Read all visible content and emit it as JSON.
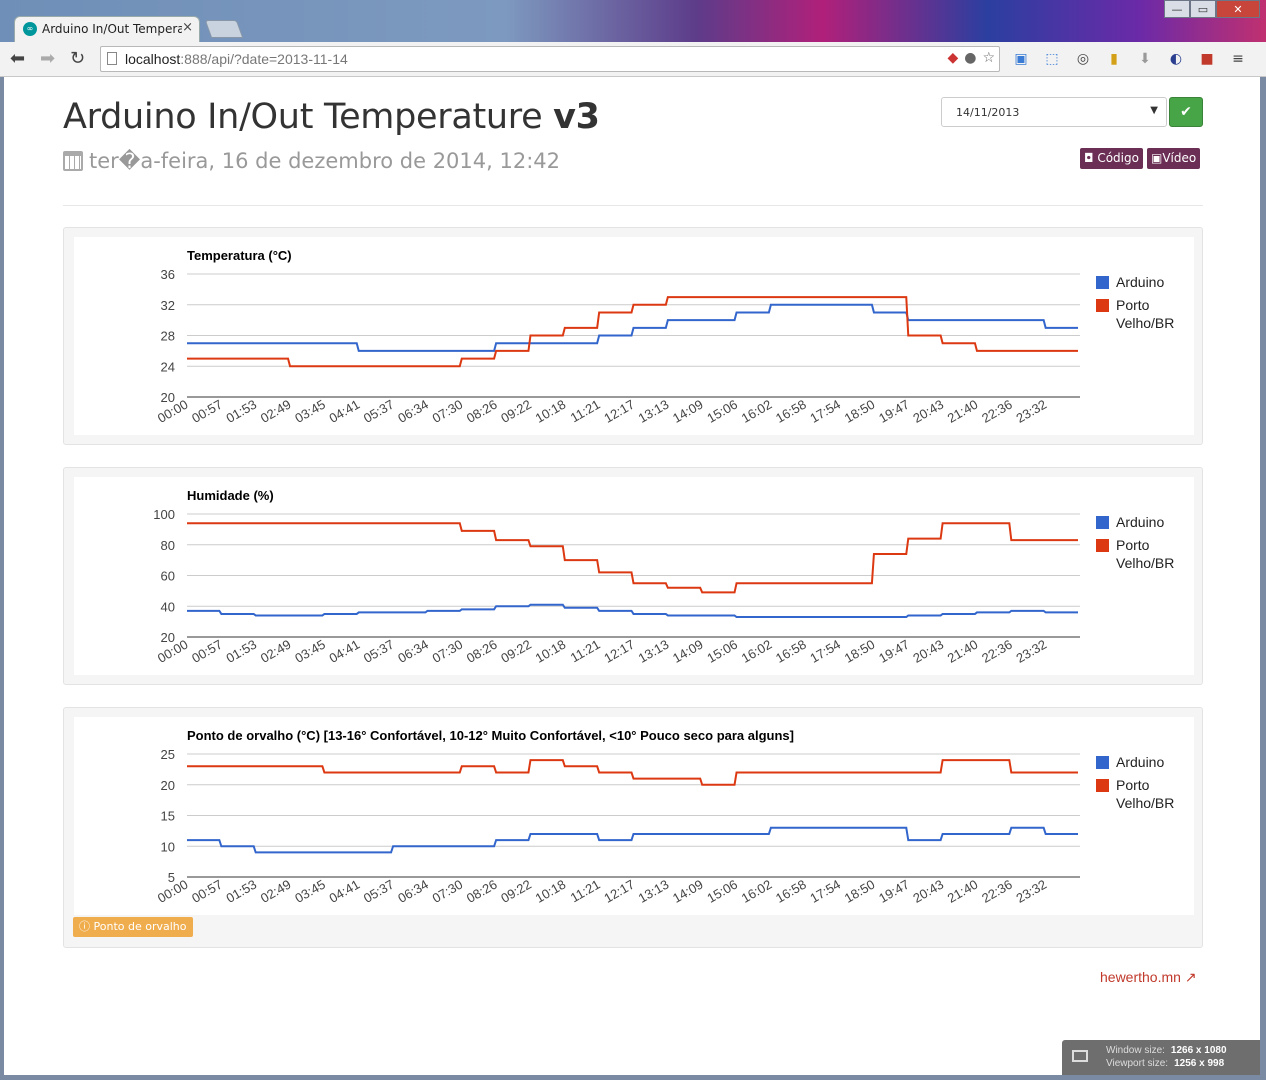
{
  "browser": {
    "tab_title": "Arduino In/Out Temperatu",
    "tab_close": "×",
    "url_host": "localhost",
    "url_rest": ":888/api/?date=2013-11-14",
    "window_controls": [
      "—",
      "▭",
      "✕"
    ]
  },
  "page": {
    "title_main": "Arduino In/Out Temperature ",
    "title_version": "v3",
    "subtitle": "ter�a-feira, 16 de dezembro de 2014, 12:42",
    "date_value": "14/11/2013",
    "code_button": "Código",
    "video_button": "Vídeo",
    "note_button": "Ponto de orvalho",
    "footer_link": "hewertho.mn"
  },
  "size_overlay": {
    "window_label": "Window size:",
    "window_value": "1266 x 1080",
    "viewport_label": "Viewport size:",
    "viewport_value": "1256 x 998"
  },
  "colors": {
    "arduino": "#3366cc",
    "porto": "#dc3912"
  },
  "chart_data": [
    {
      "type": "line",
      "title": "Temperatura (°C)",
      "x": [
        "00:00",
        "00:57",
        "01:53",
        "02:49",
        "03:45",
        "04:41",
        "05:37",
        "06:34",
        "07:30",
        "08:26",
        "09:22",
        "10:18",
        "11:21",
        "12:17",
        "13:13",
        "14:09",
        "15:06",
        "16:02",
        "16:58",
        "17:54",
        "18:50",
        "19:47",
        "20:43",
        "21:40",
        "22:36",
        "23:32"
      ],
      "yticks": [
        20,
        24,
        28,
        32,
        36
      ],
      "ylim": [
        20,
        36
      ],
      "series": [
        {
          "name": "Arduino",
          "values": [
            27,
            27,
            27,
            27,
            27,
            26,
            26,
            26,
            26,
            27,
            27,
            27,
            28,
            29,
            30,
            30,
            31,
            32,
            32,
            32,
            31,
            30,
            30,
            30,
            30,
            29
          ]
        },
        {
          "name": "Porto Velho/BR",
          "values": [
            25,
            25,
            25,
            24,
            24,
            24,
            24,
            24,
            25,
            26,
            28,
            29,
            31,
            32,
            33,
            33,
            33,
            33,
            33,
            33,
            33,
            28,
            27,
            26,
            26,
            26
          ]
        }
      ]
    },
    {
      "type": "line",
      "title": "Humidade (%)",
      "x": [
        "00:00",
        "00:57",
        "01:53",
        "02:49",
        "03:45",
        "04:41",
        "05:37",
        "06:34",
        "07:30",
        "08:26",
        "09:22",
        "10:18",
        "11:21",
        "12:17",
        "13:13",
        "14:09",
        "15:06",
        "16:02",
        "16:58",
        "17:54",
        "18:50",
        "19:47",
        "20:43",
        "21:40",
        "22:36",
        "23:32"
      ],
      "yticks": [
        20,
        40,
        60,
        80,
        100
      ],
      "ylim": [
        20,
        100
      ],
      "series": [
        {
          "name": "Arduino",
          "values": [
            37,
            35,
            34,
            34,
            35,
            36,
            36,
            37,
            38,
            40,
            41,
            39,
            37,
            35,
            34,
            34,
            33,
            33,
            33,
            33,
            33,
            34,
            35,
            36,
            37,
            36
          ]
        },
        {
          "name": "Porto Velho/BR",
          "values": [
            94,
            94,
            94,
            94,
            94,
            94,
            94,
            94,
            89,
            83,
            79,
            70,
            62,
            55,
            52,
            49,
            55,
            55,
            55,
            55,
            74,
            84,
            94,
            94,
            83,
            83
          ]
        }
      ]
    },
    {
      "type": "line",
      "title": "Ponto de orvalho (°C) [13-16° Confortável, 10-12° Muito Confortável, <10° Pouco seco para alguns]",
      "x": [
        "00:00",
        "00:57",
        "01:53",
        "02:49",
        "03:45",
        "04:41",
        "05:37",
        "06:34",
        "07:30",
        "08:26",
        "09:22",
        "10:18",
        "11:21",
        "12:17",
        "13:13",
        "14:09",
        "15:06",
        "16:02",
        "16:58",
        "17:54",
        "18:50",
        "19:47",
        "20:43",
        "21:40",
        "22:36",
        "23:32"
      ],
      "yticks": [
        5,
        10,
        15,
        20,
        25
      ],
      "ylim": [
        5,
        25
      ],
      "series": [
        {
          "name": "Arduino",
          "values": [
            11,
            10,
            9,
            9,
            9,
            9,
            10,
            10,
            10,
            11,
            12,
            12,
            11,
            12,
            12,
            12,
            12,
            13,
            13,
            13,
            13,
            11,
            12,
            12,
            13,
            12
          ]
        },
        {
          "name": "Porto Velho/BR",
          "values": [
            23,
            23,
            23,
            23,
            22,
            22,
            22,
            22,
            23,
            22,
            24,
            23,
            22,
            21,
            21,
            20,
            22,
            22,
            22,
            22,
            22,
            22,
            24,
            24,
            22,
            22
          ]
        }
      ]
    }
  ]
}
